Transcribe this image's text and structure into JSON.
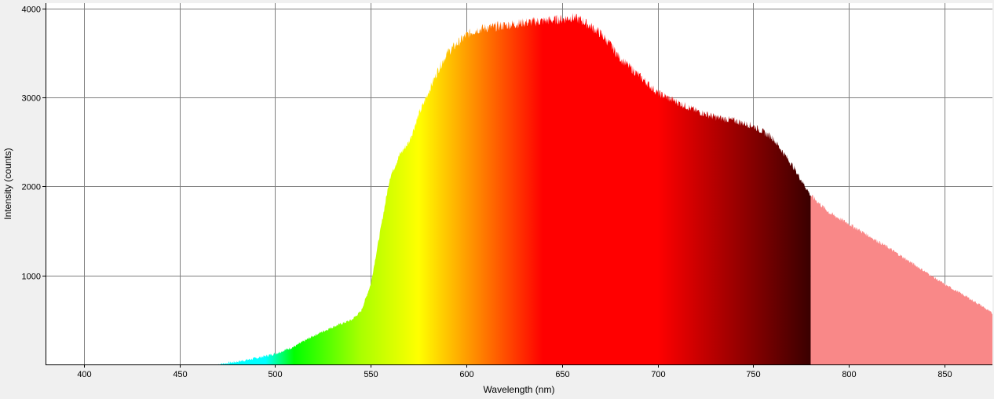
{
  "chart_data": {
    "type": "area",
    "title": "",
    "xlabel": "Wavelength (nm)",
    "ylabel": "Intensity (counts)",
    "xlim": [
      380,
      875
    ],
    "ylim": [
      0,
      4060
    ],
    "x_ticks": [
      400,
      450,
      500,
      550,
      600,
      650,
      700,
      750,
      800,
      850
    ],
    "y_ticks": [
      1000,
      2000,
      3000,
      4000
    ],
    "grid": true,
    "legend": "none",
    "visible_spectrum_cutoff_nm": 780,
    "colors": {
      "background": "#f0f0f0",
      "plot_background": "#ffffff",
      "grid": "#7f7f7f",
      "beyond_visible_fill": "#f98888"
    },
    "series": [
      {
        "x": [
          470,
          480,
          490,
          500,
          510,
          520,
          530,
          540,
          545,
          550,
          555,
          560,
          565,
          570,
          575,
          580,
          585,
          590,
          595,
          600,
          605,
          610,
          620,
          630,
          640,
          650,
          655,
          660,
          665,
          670,
          675,
          680,
          690,
          700,
          710,
          720,
          730,
          740,
          750,
          760,
          770,
          780,
          790,
          800,
          810,
          820,
          830,
          840,
          850,
          860,
          870,
          875
        ],
        "y": [
          0,
          30,
          70,
          120,
          200,
          320,
          420,
          500,
          600,
          900,
          1500,
          2100,
          2350,
          2500,
          2800,
          3050,
          3300,
          3500,
          3600,
          3700,
          3760,
          3780,
          3810,
          3840,
          3860,
          3880,
          3900,
          3870,
          3800,
          3720,
          3600,
          3450,
          3250,
          3050,
          2950,
          2850,
          2780,
          2740,
          2680,
          2550,
          2250,
          1900,
          1700,
          1580,
          1450,
          1320,
          1180,
          1040,
          900,
          780,
          650,
          570
        ]
      }
    ]
  }
}
